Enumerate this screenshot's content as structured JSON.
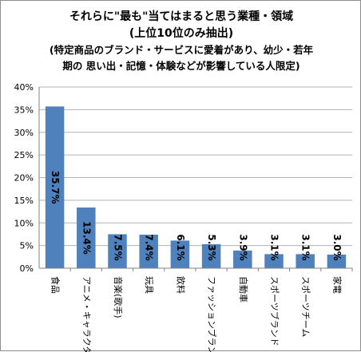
{
  "chart_data": {
    "type": "bar",
    "title": [
      "それらに\"最も\"当てはまると思う業種・領域",
      "(上位10位のみ抽出)",
      "(特定商品のブランド・サービスに愛着があり、幼少・若年",
      "期の 思い出・記憶・体験などが影響している人限定)"
    ],
    "categories": [
      "食品",
      "アニメ・キャラクタ",
      "音楽(歌手)",
      "玩具",
      "飲料",
      "ファッションブランド",
      "自動車",
      "スポーツブランド",
      "スポーツチーム",
      "家電"
    ],
    "values": [
      35.7,
      13.4,
      7.5,
      7.4,
      6.1,
      5.3,
      3.9,
      3.1,
      3.1,
      3.0
    ],
    "value_labels": [
      "35.7%",
      "13.4%",
      "7.5%",
      "7.4%",
      "6.1%",
      "5.3%",
      "3.9%",
      "3.1%",
      "3.1%",
      "3.0%"
    ],
    "y_ticks": [
      "0%",
      "5%",
      "10%",
      "15%",
      "20%",
      "25%",
      "30%",
      "35%",
      "40%"
    ],
    "ylim": [
      0,
      40
    ],
    "grid": true,
    "bar_color": "#4f81bd",
    "grid_color": "#b3b3b3"
  }
}
